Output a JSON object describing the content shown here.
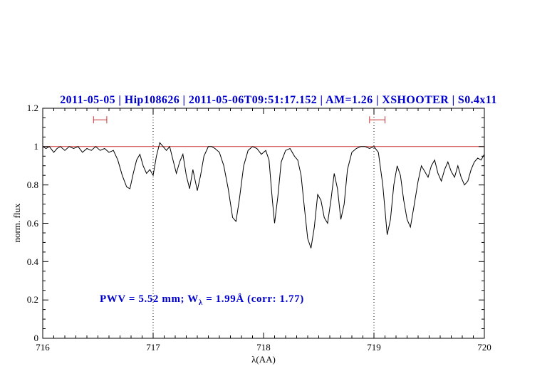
{
  "header": {
    "title": "2011-05-05 | Hip108626 | 2011-05-06T09:51:17.152 | AM=1.26 | XSHOOTER | S0.4x11"
  },
  "annotation": {
    "prefix": "PWV = 5.52 mm; W",
    "subscript": "λ",
    "suffix": " = 1.99Å (corr: 1.77)"
  },
  "axes": {
    "xlabel": "λ(AA)",
    "ylabel": "norm. flux",
    "x_tick_labels": [
      "716",
      "717",
      "718",
      "719",
      "720"
    ],
    "y_tick_labels": [
      "1.2",
      "1",
      "0.8",
      "0.6",
      "0.4",
      "0.2",
      "0"
    ]
  },
  "colors": {
    "title": "#0000cc",
    "annotation": "#0000cc",
    "spectrum": "#000000",
    "fit": "#cc3333",
    "marker": "#cc3333",
    "vline": "#000000"
  },
  "chart_data": {
    "type": "line",
    "title": "2011-05-05 | Hip108626 | 2011-05-06T09:51:17.152 | AM=1.26 | XSHOOTER | S0.4x11",
    "xlabel": "λ(AA)",
    "ylabel": "norm. flux",
    "xlim": [
      716,
      720
    ],
    "ylim": [
      0,
      1.2
    ],
    "x_ticks": [
      716,
      717,
      718,
      719,
      720
    ],
    "y_ticks": [
      0,
      0.2,
      0.4,
      0.6,
      0.8,
      1,
      1.2
    ],
    "x_minor_step": 0.1,
    "y_minor_step": 0.05,
    "grid": false,
    "legend": "none",
    "vlines": [
      {
        "x": 717,
        "style": "dotted"
      },
      {
        "x": 719,
        "style": "dotted"
      }
    ],
    "range_markers": [
      {
        "x1": 716.46,
        "x2": 716.58,
        "y": 1.14
      },
      {
        "x1": 718.96,
        "x2": 719.1,
        "y": 1.14
      }
    ],
    "series": [
      {
        "name": "continuum-fit",
        "color_key": "fit",
        "points": [
          [
            716.0,
            1.0
          ],
          [
            720.0,
            1.0
          ]
        ]
      },
      {
        "name": "observed-spectrum",
        "color_key": "spectrum",
        "points": [
          [
            716.0,
            1.0
          ],
          [
            716.03,
            0.99
          ],
          [
            716.06,
            1.0
          ],
          [
            716.1,
            0.97
          ],
          [
            716.13,
            0.99
          ],
          [
            716.16,
            1.0
          ],
          [
            716.2,
            0.98
          ],
          [
            716.24,
            1.0
          ],
          [
            716.28,
            0.99
          ],
          [
            716.32,
            1.0
          ],
          [
            716.36,
            0.97
          ],
          [
            716.4,
            0.99
          ],
          [
            716.44,
            0.98
          ],
          [
            716.48,
            1.0
          ],
          [
            716.52,
            0.98
          ],
          [
            716.56,
            0.99
          ],
          [
            716.6,
            0.97
          ],
          [
            716.64,
            0.98
          ],
          [
            716.68,
            0.93
          ],
          [
            716.72,
            0.85
          ],
          [
            716.76,
            0.79
          ],
          [
            716.79,
            0.78
          ],
          [
            716.82,
            0.86
          ],
          [
            716.85,
            0.93
          ],
          [
            716.88,
            0.96
          ],
          [
            716.91,
            0.9
          ],
          [
            716.94,
            0.86
          ],
          [
            716.97,
            0.88
          ],
          [
            717.0,
            0.85
          ],
          [
            717.03,
            0.95
          ],
          [
            717.06,
            1.02
          ],
          [
            717.09,
            1.0
          ],
          [
            717.12,
            0.98
          ],
          [
            717.15,
            1.0
          ],
          [
            717.18,
            0.93
          ],
          [
            717.21,
            0.86
          ],
          [
            717.24,
            0.92
          ],
          [
            717.27,
            0.96
          ],
          [
            717.3,
            0.85
          ],
          [
            717.33,
            0.78
          ],
          [
            717.36,
            0.88
          ],
          [
            717.4,
            0.77
          ],
          [
            717.43,
            0.85
          ],
          [
            717.46,
            0.95
          ],
          [
            717.5,
            1.0
          ],
          [
            717.53,
            1.0
          ],
          [
            717.56,
            0.99
          ],
          [
            717.6,
            0.97
          ],
          [
            717.64,
            0.9
          ],
          [
            717.68,
            0.78
          ],
          [
            717.72,
            0.63
          ],
          [
            717.75,
            0.61
          ],
          [
            717.78,
            0.72
          ],
          [
            717.82,
            0.9
          ],
          [
            717.86,
            0.98
          ],
          [
            717.9,
            1.0
          ],
          [
            717.94,
            0.99
          ],
          [
            717.98,
            0.96
          ],
          [
            718.02,
            0.98
          ],
          [
            718.05,
            0.93
          ],
          [
            718.08,
            0.72
          ],
          [
            718.1,
            0.6
          ],
          [
            718.13,
            0.74
          ],
          [
            718.16,
            0.92
          ],
          [
            718.2,
            0.98
          ],
          [
            718.24,
            0.99
          ],
          [
            718.28,
            0.95
          ],
          [
            718.31,
            0.93
          ],
          [
            718.34,
            0.85
          ],
          [
            718.37,
            0.68
          ],
          [
            718.4,
            0.52
          ],
          [
            718.43,
            0.47
          ],
          [
            718.46,
            0.58
          ],
          [
            718.49,
            0.75
          ],
          [
            718.52,
            0.72
          ],
          [
            718.55,
            0.63
          ],
          [
            718.58,
            0.6
          ],
          [
            718.61,
            0.72
          ],
          [
            718.64,
            0.86
          ],
          [
            718.67,
            0.78
          ],
          [
            718.7,
            0.62
          ],
          [
            718.73,
            0.7
          ],
          [
            718.76,
            0.88
          ],
          [
            718.8,
            0.97
          ],
          [
            718.84,
            0.99
          ],
          [
            718.88,
            1.0
          ],
          [
            718.92,
            1.0
          ],
          [
            718.96,
            0.99
          ],
          [
            719.0,
            1.0
          ],
          [
            719.04,
            0.97
          ],
          [
            719.08,
            0.8
          ],
          [
            719.12,
            0.54
          ],
          [
            719.15,
            0.62
          ],
          [
            719.18,
            0.8
          ],
          [
            719.21,
            0.9
          ],
          [
            719.24,
            0.85
          ],
          [
            719.27,
            0.72
          ],
          [
            719.3,
            0.62
          ],
          [
            719.33,
            0.58
          ],
          [
            719.36,
            0.68
          ],
          [
            719.4,
            0.82
          ],
          [
            719.43,
            0.9
          ],
          [
            719.46,
            0.87
          ],
          [
            719.49,
            0.84
          ],
          [
            719.52,
            0.9
          ],
          [
            719.55,
            0.93
          ],
          [
            719.58,
            0.86
          ],
          [
            719.61,
            0.82
          ],
          [
            719.64,
            0.88
          ],
          [
            719.67,
            0.92
          ],
          [
            719.7,
            0.87
          ],
          [
            719.73,
            0.84
          ],
          [
            719.76,
            0.9
          ],
          [
            719.79,
            0.84
          ],
          [
            719.82,
            0.8
          ],
          [
            719.85,
            0.82
          ],
          [
            719.88,
            0.88
          ],
          [
            719.91,
            0.92
          ],
          [
            719.94,
            0.94
          ],
          [
            719.97,
            0.93
          ],
          [
            720.0,
            0.96
          ]
        ]
      }
    ]
  }
}
